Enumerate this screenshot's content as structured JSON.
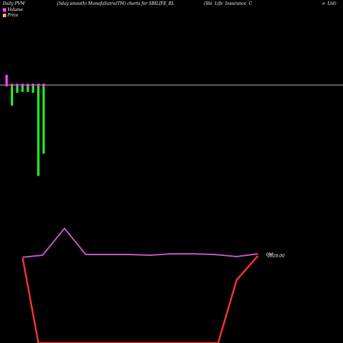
{
  "header": {
    "left": "Daily PVM",
    "center": "(5day smooth) MunafaSutra(TM) charts for SBILIFE_BL",
    "right": "(Sbi  Life  Insurance  C",
    "right_tail": "o  Ltd)"
  },
  "legend": {
    "volume_label": "Volume",
    "price_label": "Price",
    "volume_color": "#ff44ff",
    "price_color": "#ffaa66"
  },
  "price_label_prefix": "0M",
  "price_label_value": "2029.00",
  "colors": {
    "background": "#000000",
    "baseline": "#c0c0c0",
    "volume_up": "#ff44ff",
    "volume_down": "#22ee22",
    "price_line": "#ff3333",
    "smooth_line": "#cc55cc"
  },
  "chart_data": [
    {
      "type": "bar",
      "title": "",
      "series": [
        {
          "values": [
            0.6,
            -1.2,
            -0.45,
            -0.4,
            -0.4,
            -0.45,
            -5.3,
            -4.0
          ]
        }
      ]
    },
    {
      "type": "line",
      "series": [
        {
          "values": [
            1850,
            1836,
            1640,
            1810,
            1810,
            1812,
            1809,
            1814,
            1814,
            1816,
            1812
          ]
        },
        {
          "values": [
            1860,
            2600,
            2640,
            2630,
            2620,
            2615,
            2610,
            2600,
            2180,
            2050,
            2029
          ]
        }
      ],
      "last_value": 2029.0
    }
  ]
}
